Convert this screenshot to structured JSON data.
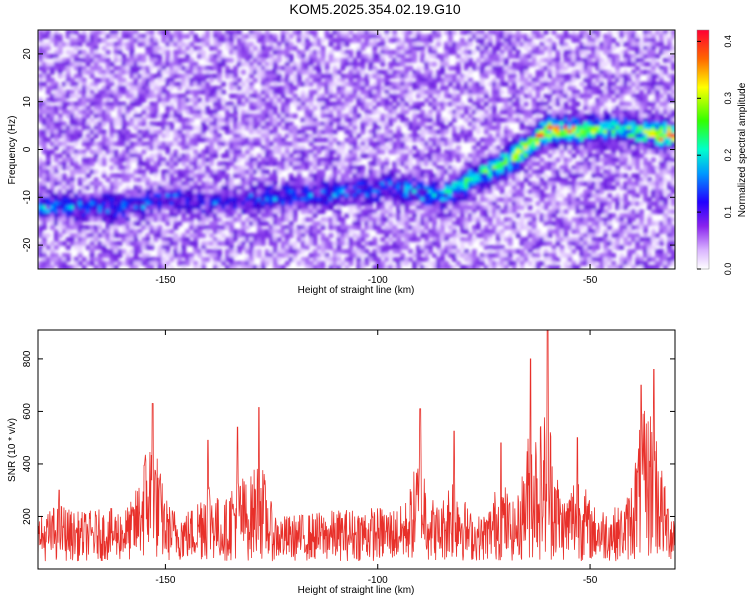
{
  "title": "KOM5.2025.354.02.19.G10",
  "chart_data": [
    {
      "type": "heatmap",
      "xlabel": "Height of straight line (km)",
      "ylabel": "Frequency (Hz)",
      "xlim": [
        -180,
        -30
      ],
      "ylim": [
        -25,
        25
      ],
      "xticks": [
        -150,
        -100,
        -50
      ],
      "yticks": [
        -20,
        -10,
        0,
        10,
        20
      ],
      "colorbar": {
        "label": "Normalized spectral amplitude",
        "range": [
          0,
          0.42
        ],
        "ticks": [
          0.0,
          0.1,
          0.2,
          0.3,
          0.4
        ],
        "tick_labels": [
          "0.0",
          "0.1",
          "0.2",
          "0.3",
          "0.4"
        ],
        "colors": [
          "#ffffff",
          "#e6ccff",
          "#9933ff",
          "#5500cc",
          "#0000ff",
          "#00ffff",
          "#00ff44",
          "#ffff00",
          "#ff0000"
        ]
      },
      "ridge": {
        "description_points": [
          {
            "x": -160,
            "y": -12,
            "v": 0.12
          },
          {
            "x": -150,
            "y": -10,
            "v": 0.1
          },
          {
            "x": -140,
            "y": -11,
            "v": 0.08
          },
          {
            "x": -95,
            "y": -8,
            "v": 0.12
          },
          {
            "x": -85,
            "y": -10,
            "v": 0.16
          },
          {
            "x": -78,
            "y": -6,
            "v": 0.2
          },
          {
            "x": -70,
            "y": -3,
            "v": 0.24
          },
          {
            "x": -60,
            "y": 4,
            "v": 0.38
          },
          {
            "x": -50,
            "y": 4,
            "v": 0.22
          },
          {
            "x": -40,
            "y": 4,
            "v": 0.2
          },
          {
            "x": -33,
            "y": 3,
            "v": 0.35
          }
        ]
      }
    },
    {
      "type": "line",
      "xlabel": "Height of straight line (km)",
      "ylabel": "SNR (10 * v/v)",
      "xlim": [
        -180,
        -30
      ],
      "ylim": [
        0,
        910
      ],
      "xticks": [
        -150,
        -100,
        -50
      ],
      "yticks": [
        200,
        400,
        600,
        800
      ],
      "color": "#e8302a",
      "peaks": [
        {
          "x": -175,
          "y": 300
        },
        {
          "x": -155,
          "y": 395
        },
        {
          "x": -153,
          "y": 630
        },
        {
          "x": -140,
          "y": 490
        },
        {
          "x": -133,
          "y": 540
        },
        {
          "x": -128,
          "y": 615
        },
        {
          "x": -90,
          "y": 610
        },
        {
          "x": -82,
          "y": 525
        },
        {
          "x": -71,
          "y": 480
        },
        {
          "x": -64,
          "y": 800
        },
        {
          "x": -60,
          "y": 910
        },
        {
          "x": -53,
          "y": 500
        },
        {
          "x": -38,
          "y": 700
        },
        {
          "x": -35,
          "y": 760
        }
      ]
    }
  ]
}
